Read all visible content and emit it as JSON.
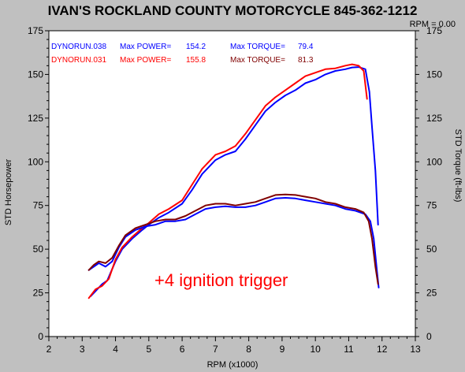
{
  "header": {
    "title": "IVAN'S ROCKLAND COUNTY MOTORCYCLE 845-362-1212",
    "rpm_readout": "RPM = 0.00"
  },
  "chart_data": {
    "type": "line",
    "title": "IVAN'S ROCKLAND COUNTY MOTORCYCLE 845-362-1212",
    "xlabel": "RPM (x1000)",
    "ylabel_left": "STD Horsepower",
    "ylabel_right": "STD Torque (ft-lbs)",
    "xlim": [
      2,
      13
    ],
    "ylim": [
      0,
      175
    ],
    "x_ticks": [
      2,
      3,
      4,
      5,
      6,
      7,
      8,
      9,
      10,
      11,
      12,
      13
    ],
    "y_ticks": [
      0,
      25,
      50,
      75,
      100,
      125,
      150,
      175
    ],
    "grid": false,
    "legend_position": "top-left",
    "annotation": "+4 ignition trigger",
    "legend": [
      {
        "run": "DYNORUN.038",
        "power_label": "Max POWER=",
        "power": "154.2",
        "torque_label": "Max TORQUE=",
        "torque": "79.4",
        "color": "#0000ff"
      },
      {
        "run": "DYNORUN.031",
        "power_label": "Max POWER=",
        "power": "155.8",
        "torque_label": "Max TORQUE=",
        "torque": "81.3",
        "color": "#ff0000"
      }
    ],
    "series": [
      {
        "name": "DYNORUN.038",
        "measure": "power",
        "color": "#0000ff",
        "points": [
          [
            3.25,
            23
          ],
          [
            3.4,
            26
          ],
          [
            3.6,
            30
          ],
          [
            3.75,
            32
          ],
          [
            4.0,
            43
          ],
          [
            4.2,
            50
          ],
          [
            4.5,
            56
          ],
          [
            4.8,
            61
          ],
          [
            5.0,
            64
          ],
          [
            5.3,
            68
          ],
          [
            5.6,
            71
          ],
          [
            6.0,
            76
          ],
          [
            6.3,
            84
          ],
          [
            6.6,
            93
          ],
          [
            7.0,
            101
          ],
          [
            7.3,
            104
          ],
          [
            7.6,
            106
          ],
          [
            7.9,
            113
          ],
          [
            8.2,
            121
          ],
          [
            8.5,
            129
          ],
          [
            8.8,
            134
          ],
          [
            9.1,
            138
          ],
          [
            9.4,
            141
          ],
          [
            9.7,
            145
          ],
          [
            10.0,
            147
          ],
          [
            10.3,
            150
          ],
          [
            10.6,
            152
          ],
          [
            10.9,
            153
          ],
          [
            11.1,
            154
          ],
          [
            11.3,
            154.2
          ],
          [
            11.5,
            153
          ],
          [
            11.62,
            140
          ],
          [
            11.7,
            120
          ],
          [
            11.8,
            95
          ],
          [
            11.88,
            64
          ]
        ]
      },
      {
        "name": "DYNORUN.031",
        "measure": "power",
        "color": "#ff0000",
        "points": [
          [
            3.2,
            22
          ],
          [
            3.4,
            27
          ],
          [
            3.6,
            29
          ],
          [
            3.8,
            33
          ],
          [
            4.0,
            44
          ],
          [
            4.2,
            51
          ],
          [
            4.5,
            57
          ],
          [
            4.8,
            62
          ],
          [
            5.0,
            65
          ],
          [
            5.3,
            70
          ],
          [
            5.6,
            73
          ],
          [
            6.0,
            78
          ],
          [
            6.3,
            87
          ],
          [
            6.6,
            96
          ],
          [
            7.0,
            104
          ],
          [
            7.3,
            106
          ],
          [
            7.6,
            109
          ],
          [
            7.9,
            116
          ],
          [
            8.2,
            124
          ],
          [
            8.5,
            132
          ],
          [
            8.8,
            137
          ],
          [
            9.1,
            141
          ],
          [
            9.4,
            145
          ],
          [
            9.7,
            149
          ],
          [
            10.0,
            151
          ],
          [
            10.3,
            153
          ],
          [
            10.6,
            153.5
          ],
          [
            10.9,
            155
          ],
          [
            11.1,
            155.8
          ],
          [
            11.3,
            155
          ],
          [
            11.45,
            152
          ],
          [
            11.55,
            136
          ]
        ]
      },
      {
        "name": "DYNORUN.038",
        "measure": "torque",
        "color": "#0000ff",
        "points": [
          [
            3.2,
            38
          ],
          [
            3.35,
            40
          ],
          [
            3.5,
            42
          ],
          [
            3.7,
            40
          ],
          [
            3.9,
            43
          ],
          [
            4.1,
            51
          ],
          [
            4.3,
            57
          ],
          [
            4.6,
            61
          ],
          [
            4.9,
            63
          ],
          [
            5.2,
            64
          ],
          [
            5.5,
            66
          ],
          [
            5.8,
            66
          ],
          [
            6.1,
            67
          ],
          [
            6.4,
            70
          ],
          [
            6.7,
            73
          ],
          [
            7.0,
            74
          ],
          [
            7.3,
            74.5
          ],
          [
            7.6,
            74
          ],
          [
            7.9,
            74
          ],
          [
            8.2,
            75
          ],
          [
            8.5,
            77
          ],
          [
            8.8,
            79
          ],
          [
            9.1,
            79.4
          ],
          [
            9.4,
            79
          ],
          [
            9.7,
            78
          ],
          [
            10.0,
            77
          ],
          [
            10.3,
            76
          ],
          [
            10.6,
            75
          ],
          [
            10.9,
            73
          ],
          [
            11.2,
            72
          ],
          [
            11.5,
            70
          ],
          [
            11.65,
            66
          ],
          [
            11.75,
            56
          ],
          [
            11.85,
            37
          ],
          [
            11.9,
            28
          ]
        ]
      },
      {
        "name": "DYNORUN.031",
        "measure": "torque",
        "color": "#800000",
        "points": [
          [
            3.2,
            38
          ],
          [
            3.35,
            41
          ],
          [
            3.5,
            43
          ],
          [
            3.7,
            42
          ],
          [
            3.9,
            45
          ],
          [
            4.1,
            52
          ],
          [
            4.3,
            58
          ],
          [
            4.6,
            62
          ],
          [
            4.9,
            64
          ],
          [
            5.2,
            66
          ],
          [
            5.5,
            67
          ],
          [
            5.8,
            67
          ],
          [
            6.1,
            69
          ],
          [
            6.4,
            72
          ],
          [
            6.7,
            75
          ],
          [
            7.0,
            76
          ],
          [
            7.3,
            76
          ],
          [
            7.6,
            75
          ],
          [
            7.9,
            76
          ],
          [
            8.2,
            77
          ],
          [
            8.5,
            79
          ],
          [
            8.8,
            81
          ],
          [
            9.1,
            81.3
          ],
          [
            9.4,
            81
          ],
          [
            9.7,
            80
          ],
          [
            10.0,
            79
          ],
          [
            10.3,
            77
          ],
          [
            10.6,
            76
          ],
          [
            10.9,
            74
          ],
          [
            11.2,
            73
          ],
          [
            11.45,
            71
          ],
          [
            11.6,
            66
          ],
          [
            11.7,
            56
          ],
          [
            11.8,
            40
          ],
          [
            11.88,
            30
          ]
        ]
      }
    ]
  }
}
